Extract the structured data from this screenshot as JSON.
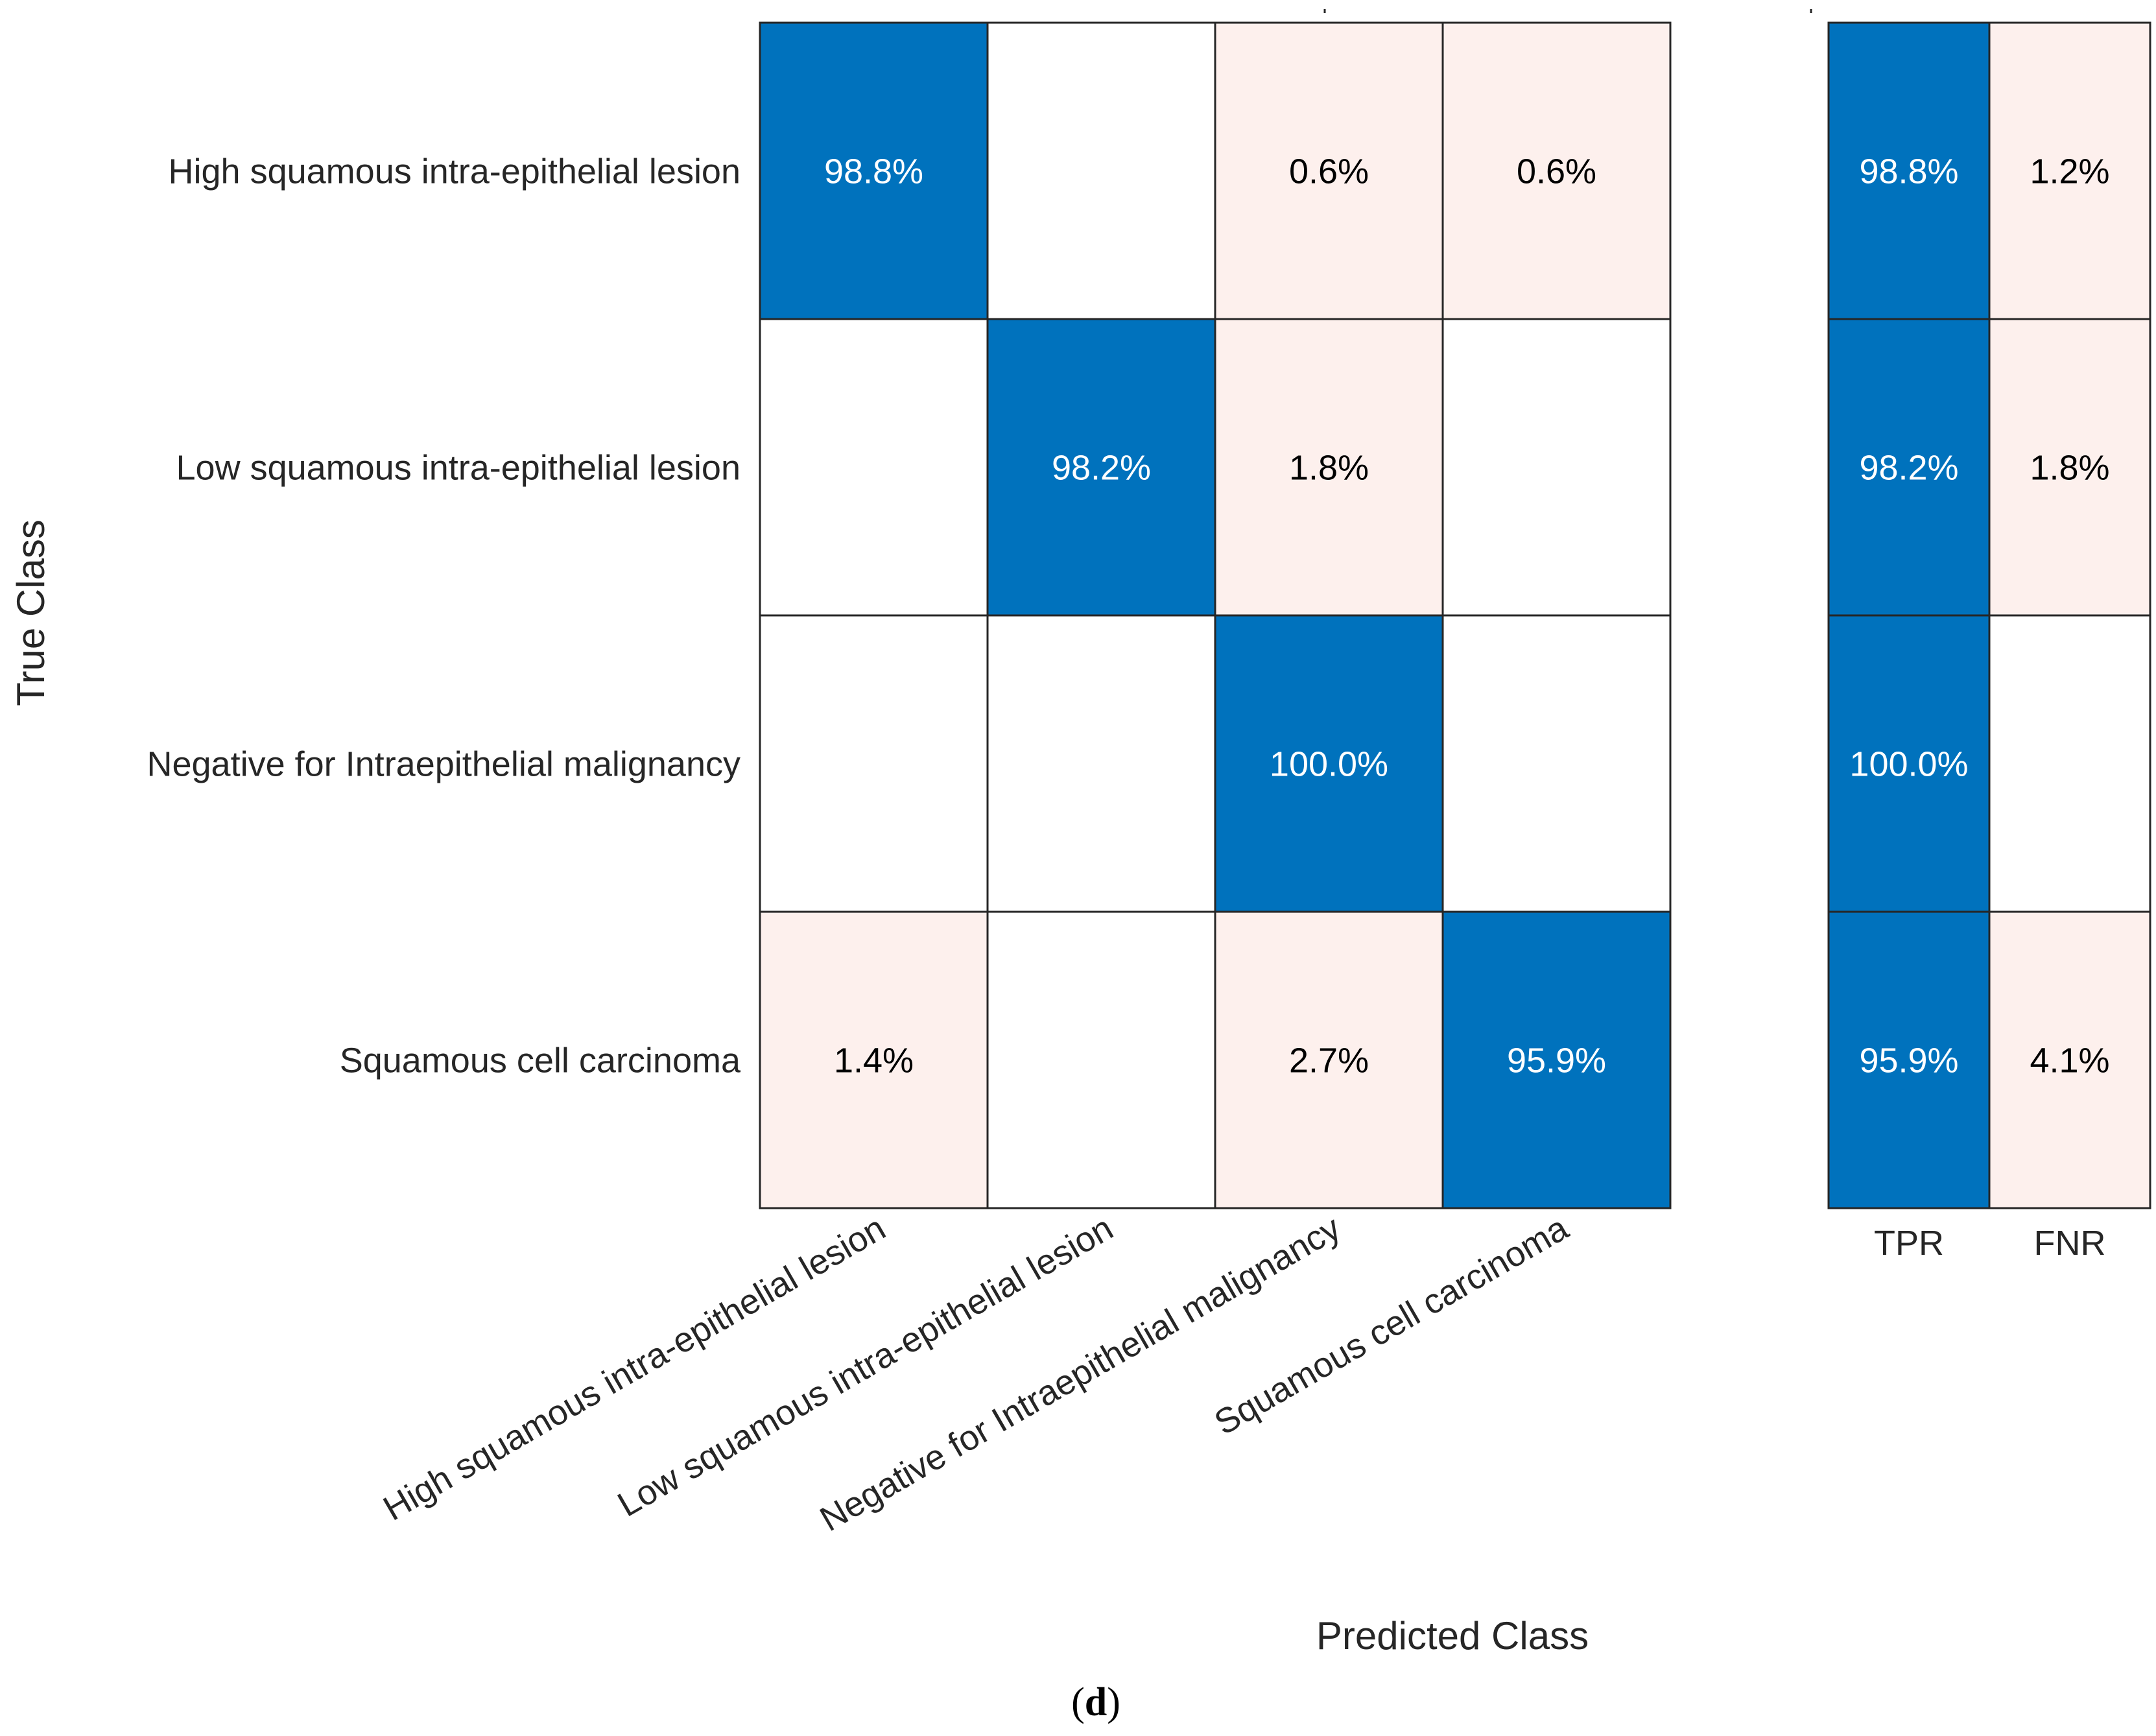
{
  "chart_data": {
    "type": "heatmap",
    "title": "",
    "xlabel": "Predicted Class",
    "ylabel": "True Class",
    "caption": "(d)",
    "caption_letter": "d",
    "classes": [
      "High squamous intra-epithelial lesion",
      "Low squamous intra-epithelial lesion",
      "Negative for Intraepithelial malignancy",
      "Squamous cell carcinoma"
    ],
    "matrix": [
      [
        98.8,
        0,
        0.6,
        0.6
      ],
      [
        0,
        98.2,
        1.8,
        0
      ],
      [
        0,
        0,
        100.0,
        0
      ],
      [
        1.4,
        0,
        2.7,
        95.9
      ]
    ],
    "matrix_labels": [
      [
        "98.8%",
        "",
        "0.6%",
        "0.6%"
      ],
      [
        "",
        "98.2%",
        "1.8%",
        ""
      ],
      [
        "",
        "",
        "100.0%",
        ""
      ],
      [
        "1.4%",
        "",
        "2.7%",
        "95.9%"
      ]
    ],
    "summary_columns": [
      "TPR",
      "FNR"
    ],
    "summary": [
      [
        98.8,
        1.2
      ],
      [
        98.2,
        1.8
      ],
      [
        100.0,
        0
      ],
      [
        95.9,
        4.1
      ]
    ],
    "summary_labels": [
      [
        "98.8%",
        "1.2%"
      ],
      [
        "98.2%",
        "1.8%"
      ],
      [
        "100.0%",
        ""
      ],
      [
        "95.9%",
        "4.1%"
      ]
    ],
    "colors": {
      "correct": "#0072BD",
      "error": "#FDF0ED",
      "empty": "#FFFFFF",
      "grid": "#262626",
      "text_on_dark": "#FFFFFF",
      "text_on_light": "#000000"
    }
  }
}
